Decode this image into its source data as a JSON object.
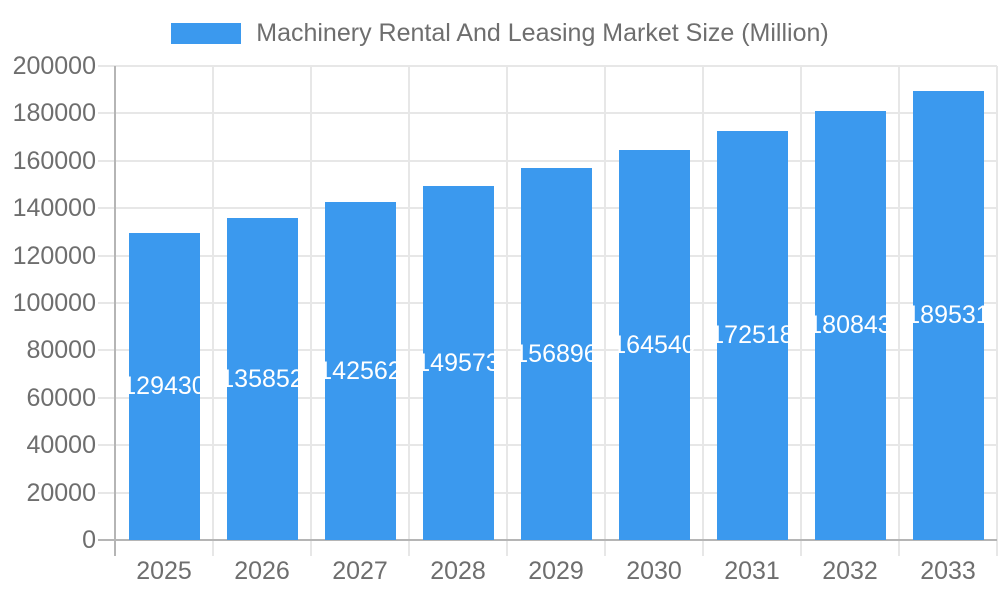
{
  "legend": {
    "label": "Machinery Rental And Leasing Market Size (Million)"
  },
  "chart_data": {
    "type": "bar",
    "title": "Machinery Rental And Leasing Market Size (Million)",
    "categories": [
      "2025",
      "2026",
      "2027",
      "2028",
      "2029",
      "2030",
      "2031",
      "2032",
      "2033"
    ],
    "values": [
      129430,
      135852,
      142562,
      149573,
      156896,
      164540,
      172518,
      180843,
      189531
    ],
    "series": [
      {
        "name": "Machinery Rental And Leasing Market Size (Million)",
        "values": [
          129430,
          135852,
          142562,
          149573,
          156896,
          164540,
          172518,
          180843,
          189531
        ]
      }
    ],
    "bar_labels": [
      "129430",
      "135852",
      "142562",
      "149573",
      "156896",
      "164540",
      "172518",
      "180843",
      "189531"
    ],
    "xlabel": "",
    "ylabel": "",
    "ylim": [
      0,
      200000
    ],
    "ytick_step": 20000,
    "ytick_labels": [
      "200000",
      "180000",
      "160000",
      "140000",
      "120000",
      "100000",
      "80000",
      "60000",
      "40000",
      "20000",
      "0"
    ],
    "legend_position": "top",
    "grid": true,
    "colors": {
      "bar": "#3B99EE",
      "grid": "#E7E7E7",
      "axis": "#B5B5B5",
      "tick_text": "#6E6E6E",
      "bar_label_text": "#FFFFFF",
      "background": "#FFFFFF"
    }
  }
}
